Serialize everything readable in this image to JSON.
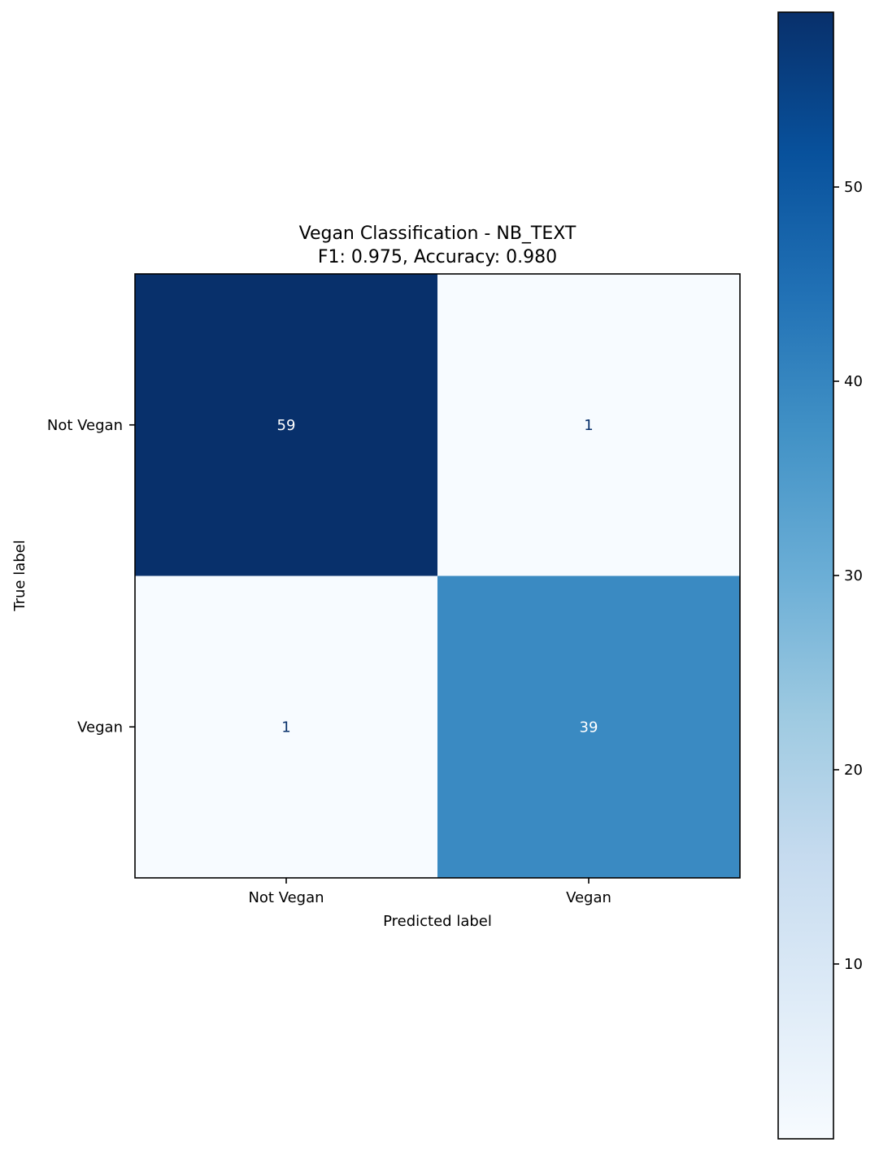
{
  "chart_data": {
    "type": "heatmap",
    "title": "Vegan Classification - NB_TEXT",
    "subtitle": "F1: 0.975, Accuracy: 0.980",
    "xlabel": "Predicted label",
    "ylabel": "True label",
    "x_categories": [
      "Not Vegan",
      "Vegan"
    ],
    "y_categories": [
      "Not Vegan",
      "Vegan"
    ],
    "matrix": [
      [
        59,
        1
      ],
      [
        1,
        39
      ]
    ],
    "colormap": "Blues",
    "colorbar": {
      "range": [
        1,
        59
      ],
      "ticks": [
        10,
        20,
        30,
        40,
        50
      ],
      "location": "right"
    },
    "colors": {
      "low": "#f7fbff",
      "high": "#08306b"
    }
  }
}
